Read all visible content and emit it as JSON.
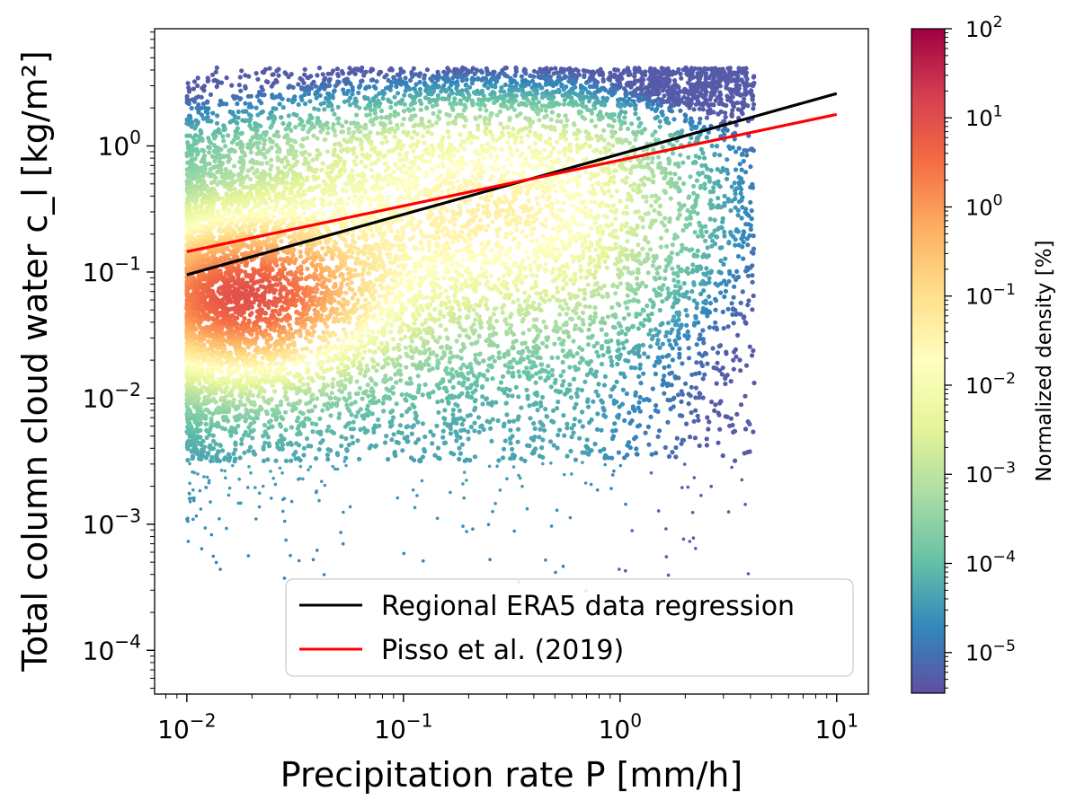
{
  "chart_data": {
    "type": "scatter",
    "title": "",
    "xlabel": "Precipitation rate P [mm/h]",
    "ylabel": "Total column cloud water c_l [kg/m²]",
    "x_scale": "log",
    "y_scale": "log",
    "xlim": [
      0.0071,
      14
    ],
    "ylim": [
      4.5e-05,
      8.5
    ],
    "x_ticks": [
      {
        "value": 0.01,
        "base": "10",
        "exp": "−2"
      },
      {
        "value": 0.1,
        "base": "10",
        "exp": "−1"
      },
      {
        "value": 1,
        "base": "10",
        "exp": "0"
      },
      {
        "value": 10,
        "base": "10",
        "exp": "1"
      }
    ],
    "y_ticks": [
      {
        "value": 0.0001,
        "base": "10",
        "exp": "−4"
      },
      {
        "value": 0.001,
        "base": "10",
        "exp": "−3"
      },
      {
        "value": 0.01,
        "base": "10",
        "exp": "−2"
      },
      {
        "value": 0.1,
        "base": "10",
        "exp": "−1"
      },
      {
        "value": 1,
        "base": "10",
        "exp": "0"
      }
    ],
    "lines": [
      {
        "name": "Regional ERA5 data regression",
        "color": "#000000",
        "x": [
          0.01,
          10
        ],
        "y": [
          0.095,
          2.6
        ]
      },
      {
        "name": "Pisso et al. (2019)",
        "color": "#ff0000",
        "x": [
          0.01,
          10
        ],
        "y": [
          0.145,
          1.78
        ]
      }
    ],
    "legend": {
      "position": "lower-right"
    },
    "colorbar": {
      "label": "Normalized density [%]",
      "scale": "log",
      "range": [
        3.5e-06,
        100
      ],
      "colormap": "Spectral_r",
      "ticks": [
        {
          "value": 100,
          "base": "10",
          "exp": "2"
        },
        {
          "value": 10,
          "base": "10",
          "exp": "1"
        },
        {
          "value": 1,
          "base": "10",
          "exp": "0"
        },
        {
          "value": 0.1,
          "base": "10",
          "exp": "−1"
        },
        {
          "value": 0.01,
          "base": "10",
          "exp": "−2"
        },
        {
          "value": 0.001,
          "base": "10",
          "exp": "−3"
        },
        {
          "value": 0.0001,
          "base": "10",
          "exp": "−4"
        },
        {
          "value": 1e-05,
          "base": "10",
          "exp": "−5"
        }
      ],
      "colors": [
        "#5e4fa2",
        "#3288bd",
        "#66c2a5",
        "#abdda4",
        "#e6f598",
        "#ffffbf",
        "#fee08b",
        "#fdae61",
        "#f46d43",
        "#d53e4f",
        "#9e0142"
      ]
    },
    "density_note": "Dense point cloud of ERA5 samples; highest density at low precipitation (0.01–0.1 mm/h) and cloud water 0.02–0.2 kg/m²"
  }
}
